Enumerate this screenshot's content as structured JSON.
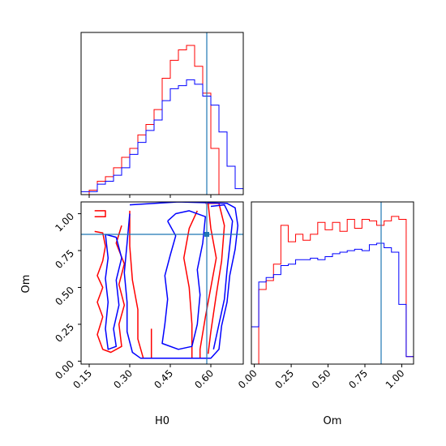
{
  "chart_data": {
    "type": "corner",
    "parameters": [
      "H0",
      "Om"
    ],
    "truths": {
      "H0": 0.585,
      "Om": 0.86
    },
    "colors": {
      "series_a": "#ff0000",
      "series_b": "#0000ff",
      "truth": "#1f77b4"
    },
    "ranges": {
      "H0": [
        0.12,
        0.72
      ],
      "Om": [
        -0.02,
        1.08
      ]
    },
    "x_ticks": {
      "H0": [
        "0.15",
        "0.30",
        "0.45",
        "0.60"
      ],
      "Om": [
        "0.00",
        "0.25",
        "0.50",
        "0.75",
        "1.00"
      ]
    },
    "y_ticks": {
      "Om": [
        "0.00",
        "0.25",
        "0.50",
        "0.75",
        "1.00"
      ]
    },
    "xlabels": {
      "H0": "H0",
      "Om": "Om"
    },
    "ylabels": {
      "Om": "Om"
    },
    "hist_h0": {
      "bin_edges": [
        0.12,
        0.15,
        0.18,
        0.21,
        0.24,
        0.27,
        0.3,
        0.33,
        0.36,
        0.39,
        0.42,
        0.45,
        0.48,
        0.51,
        0.54,
        0.57,
        0.6,
        0.63,
        0.66,
        0.69,
        0.72
      ],
      "red": [
        0.0,
        0.03,
        0.09,
        0.12,
        0.18,
        0.25,
        0.31,
        0.4,
        0.47,
        0.57,
        0.78,
        0.9,
        0.97,
        1.0,
        0.86,
        0.68,
        0.31,
        0.0,
        0.0,
        0.0
      ],
      "blue": [
        0.02,
        0.02,
        0.07,
        0.09,
        0.13,
        0.18,
        0.27,
        0.35,
        0.43,
        0.5,
        0.63,
        0.71,
        0.73,
        0.77,
        0.74,
        0.66,
        0.6,
        0.42,
        0.19,
        0.04
      ]
    },
    "hist_om": {
      "bin_edges": [
        -0.02,
        0.03,
        0.08,
        0.13,
        0.18,
        0.23,
        0.28,
        0.33,
        0.38,
        0.43,
        0.48,
        0.53,
        0.58,
        0.63,
        0.68,
        0.73,
        0.78,
        0.83,
        0.88,
        0.93,
        0.98,
        1.03,
        1.08
      ],
      "red": [
        0.0,
        0.5,
        0.56,
        0.67,
        0.93,
        0.82,
        0.87,
        0.83,
        0.87,
        0.95,
        0.9,
        0.95,
        0.89,
        0.97,
        0.91,
        0.97,
        0.96,
        0.93,
        0.96,
        0.99,
        0.97,
        0.05
      ],
      "blue": [
        0.25,
        0.55,
        0.58,
        0.6,
        0.66,
        0.67,
        0.7,
        0.7,
        0.71,
        0.7,
        0.72,
        0.74,
        0.75,
        0.76,
        0.77,
        0.76,
        0.8,
        0.81,
        0.78,
        0.75,
        0.4,
        0.05
      ]
    },
    "contours": {
      "red": [
        [
          [
            0.17,
            1.02
          ],
          [
            0.21,
            1.02
          ],
          [
            0.21,
            0.98
          ],
          [
            0.17,
            0.98
          ]
        ],
        [
          [
            0.17,
            0.88
          ],
          [
            0.2,
            0.87
          ],
          [
            0.21,
            0.78
          ],
          [
            0.2,
            0.68
          ],
          [
            0.18,
            0.58
          ],
          [
            0.2,
            0.5
          ],
          [
            0.18,
            0.4
          ],
          [
            0.2,
            0.3
          ],
          [
            0.18,
            0.18
          ],
          [
            0.2,
            0.08
          ],
          [
            0.23,
            0.06
          ],
          [
            0.27,
            0.1
          ],
          [
            0.26,
            0.25
          ],
          [
            0.28,
            0.38
          ],
          [
            0.26,
            0.52
          ],
          [
            0.28,
            0.66
          ],
          [
            0.25,
            0.8
          ],
          [
            0.27,
            0.92
          ]
        ],
        [
          [
            0.3,
            1.02
          ],
          [
            0.3,
            0.78
          ],
          [
            0.31,
            0.55
          ],
          [
            0.33,
            0.35
          ],
          [
            0.33,
            0.15
          ],
          [
            0.35,
            0.02
          ],
          [
            0.38,
            0.02
          ],
          [
            0.38,
            0.12
          ],
          [
            0.38,
            0.22
          ]
        ],
        [
          [
            0.53,
            0.02
          ],
          [
            0.53,
            0.25
          ],
          [
            0.52,
            0.5
          ],
          [
            0.5,
            0.7
          ],
          [
            0.52,
            0.9
          ],
          [
            0.55,
            1.02
          ]
        ],
        [
          [
            0.59,
            1.07
          ],
          [
            0.6,
            0.9
          ],
          [
            0.62,
            0.7
          ],
          [
            0.6,
            0.5
          ],
          [
            0.58,
            0.3
          ],
          [
            0.56,
            0.08
          ],
          [
            0.56,
            0.02
          ]
        ],
        [
          [
            0.58,
            1.07
          ],
          [
            0.63,
            1.07
          ],
          [
            0.65,
            0.92
          ],
          [
            0.64,
            0.68
          ],
          [
            0.62,
            0.45
          ],
          [
            0.6,
            0.2
          ],
          [
            0.59,
            0.05
          ]
        ]
      ],
      "blue": [
        [
          [
            0.3,
            1.06
          ],
          [
            0.48,
            1.08
          ],
          [
            0.66,
            1.07
          ],
          [
            0.69,
            1.04
          ],
          [
            0.7,
            0.92
          ],
          [
            0.69,
            0.76
          ],
          [
            0.67,
            0.58
          ],
          [
            0.66,
            0.4
          ],
          [
            0.64,
            0.24
          ],
          [
            0.63,
            0.08
          ],
          [
            0.6,
            0.02
          ],
          [
            0.47,
            0.02
          ],
          [
            0.4,
            0.02
          ],
          [
            0.34,
            0.02
          ],
          [
            0.31,
            0.06
          ],
          [
            0.29,
            0.2
          ],
          [
            0.29,
            0.4
          ],
          [
            0.28,
            0.6
          ],
          [
            0.29,
            0.8
          ],
          [
            0.3,
            1.0
          ]
        ],
        [
          [
            0.21,
            0.86
          ],
          [
            0.25,
            0.84
          ],
          [
            0.27,
            0.7
          ],
          [
            0.25,
            0.55
          ],
          [
            0.26,
            0.38
          ],
          [
            0.24,
            0.22
          ],
          [
            0.25,
            0.1
          ],
          [
            0.22,
            0.08
          ],
          [
            0.21,
            0.22
          ],
          [
            0.22,
            0.4
          ],
          [
            0.21,
            0.56
          ],
          [
            0.22,
            0.7
          ],
          [
            0.21,
            0.86
          ]
        ],
        [
          [
            0.44,
            0.95
          ],
          [
            0.47,
            0.85
          ],
          [
            0.45,
            0.72
          ],
          [
            0.43,
            0.58
          ],
          [
            0.44,
            0.42
          ],
          [
            0.43,
            0.25
          ],
          [
            0.42,
            0.12
          ],
          [
            0.48,
            0.08
          ],
          [
            0.53,
            0.1
          ],
          [
            0.55,
            0.25
          ],
          [
            0.56,
            0.45
          ],
          [
            0.55,
            0.62
          ],
          [
            0.57,
            0.8
          ],
          [
            0.58,
            0.98
          ],
          [
            0.52,
            1.02
          ],
          [
            0.47,
            1.0
          ],
          [
            0.44,
            0.95
          ]
        ],
        [
          [
            0.6,
            1.05
          ],
          [
            0.65,
            1.06
          ],
          [
            0.68,
            0.95
          ],
          [
            0.67,
            0.78
          ],
          [
            0.66,
            0.62
          ],
          [
            0.65,
            0.42
          ],
          [
            0.63,
            0.25
          ],
          [
            0.61,
            0.08
          ]
        ]
      ]
    }
  }
}
